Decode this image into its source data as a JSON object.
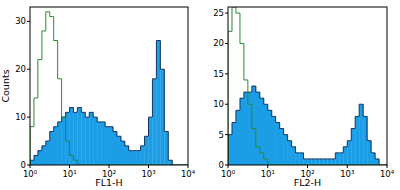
{
  "chart_data": [
    {
      "type": "histogram",
      "x_label": "FL1-H",
      "y_label": "Counts",
      "log": "x",
      "xlim": [
        1,
        10000
      ],
      "xticks": [
        {
          "value": 1,
          "label": "10⁰"
        },
        {
          "value": 10,
          "label": "10¹"
        },
        {
          "value": 100,
          "label": "10²"
        },
        {
          "value": 1000,
          "label": "10³"
        },
        {
          "value": 10000,
          "label": "10⁴"
        }
      ],
      "ylim": [
        0,
        33
      ],
      "yticks": [
        0,
        10,
        20,
        30
      ],
      "bins": [
        1,
        1.26,
        1.58,
        2,
        2.51,
        3.16,
        3.98,
        5.01,
        6.31,
        7.94,
        10,
        12.6,
        15.8,
        20,
        25.1,
        31.6,
        39.8,
        50.1,
        63.1,
        79.4,
        100,
        126,
        158,
        200,
        251,
        316,
        398,
        501,
        631,
        794,
        1000,
        1259,
        1585,
        1995,
        2512,
        3162,
        3981,
        5012,
        6310,
        7943,
        10000
      ],
      "series": [
        {
          "type": "bar",
          "color": "#1c9ee6",
          "values": [
            1,
            2,
            3,
            4,
            5,
            7,
            8,
            9,
            10,
            11,
            12,
            11,
            12,
            11,
            10,
            11,
            10,
            9,
            9,
            8,
            8,
            7,
            6,
            5,
            4,
            3,
            3,
            3,
            4,
            6,
            10,
            18,
            26,
            20,
            7,
            1,
            0,
            0,
            0,
            0
          ]
        },
        {
          "type": "line",
          "color": "#2a8a2a",
          "values": [
            8,
            14,
            22,
            28,
            32,
            31,
            26,
            18,
            10,
            5,
            2,
            1,
            0,
            0,
            0,
            0,
            0,
            0,
            0,
            0,
            0,
            0,
            0,
            0,
            0,
            0,
            0,
            0,
            0,
            0,
            0,
            0,
            0,
            0,
            0,
            0,
            0,
            0,
            0,
            0
          ]
        }
      ]
    },
    {
      "type": "histogram",
      "x_label": "FL2-H",
      "log": "x",
      "xlim": [
        1,
        10000
      ],
      "xticks": [
        {
          "value": 1,
          "label": "10⁰"
        },
        {
          "value": 10,
          "label": "10¹"
        },
        {
          "value": 100,
          "label": "10²"
        },
        {
          "value": 1000,
          "label": "10³"
        },
        {
          "value": 10000,
          "label": "10⁴"
        }
      ],
      "ylim": [
        0,
        26
      ],
      "yticks": [
        0,
        5,
        10,
        15,
        20,
        25
      ],
      "bins": [
        1,
        1.26,
        1.58,
        2,
        2.51,
        3.16,
        3.98,
        5.01,
        6.31,
        7.94,
        10,
        12.6,
        15.8,
        20,
        25.1,
        31.6,
        39.8,
        50.1,
        63.1,
        79.4,
        100,
        126,
        158,
        200,
        251,
        316,
        398,
        501,
        631,
        794,
        1000,
        1259,
        1585,
        1995,
        2512,
        3162,
        3981,
        5012,
        6310,
        7943,
        10000
      ],
      "series": [
        {
          "type": "bar",
          "color": "#1c9ee6",
          "values": [
            5,
            7,
            9,
            11,
            12,
            12,
            13,
            12,
            11,
            10,
            9,
            8,
            7,
            6,
            5,
            4,
            3,
            2,
            2,
            1,
            1,
            1,
            1,
            1,
            1,
            1,
            1,
            2,
            2,
            3,
            4,
            6,
            8,
            10,
            8,
            4,
            2,
            1,
            0,
            0
          ]
        },
        {
          "type": "line",
          "color": "#2a8a2a",
          "values": [
            22,
            26,
            25,
            20,
            14,
            10,
            6,
            3,
            2,
            1,
            0,
            0,
            0,
            0,
            0,
            0,
            0,
            0,
            0,
            0,
            0,
            0,
            0,
            0,
            0,
            0,
            0,
            0,
            0,
            0,
            0,
            0,
            0,
            0,
            0,
            0,
            0,
            0,
            0,
            0
          ]
        }
      ]
    }
  ]
}
